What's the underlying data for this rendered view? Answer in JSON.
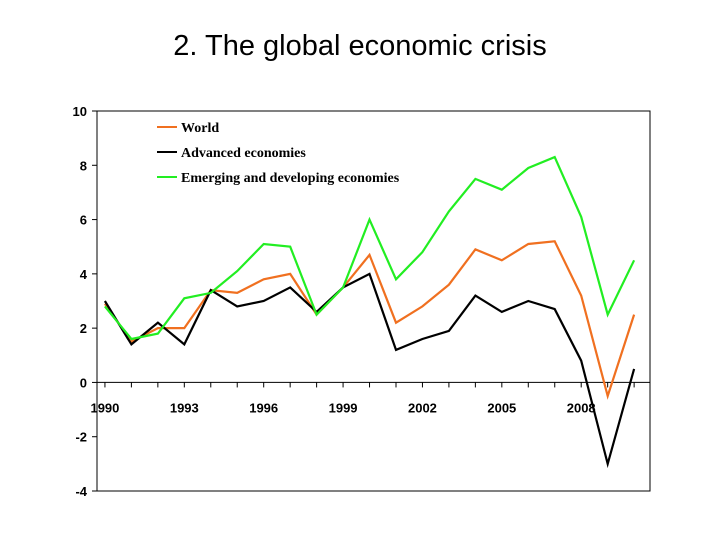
{
  "slide": {
    "title": "2. The global economic crisis"
  },
  "chart_data": {
    "type": "line",
    "title": "",
    "xlabel": "",
    "ylabel": "",
    "x": [
      1990,
      1991,
      1992,
      1993,
      1994,
      1995,
      1996,
      1997,
      1998,
      1999,
      2000,
      2001,
      2002,
      2003,
      2004,
      2005,
      2006,
      2007,
      2008,
      2009,
      2010
    ],
    "xticks": [
      "1990",
      "1993",
      "1996",
      "1999",
      "2002",
      "2005",
      "2008"
    ],
    "xtick_values": [
      1990,
      1993,
      1996,
      1999,
      2002,
      2005,
      2008
    ],
    "yticks": [
      "10",
      "8",
      "6",
      "4",
      "2",
      "0",
      "-2",
      "-4"
    ],
    "ytick_values": [
      10,
      8,
      6,
      4,
      2,
      0,
      -2,
      -4
    ],
    "ylim": [
      -4,
      10
    ],
    "xlim": [
      1989.7,
      2010.6
    ],
    "grid": false,
    "legend_position": "top-center",
    "series": [
      {
        "name": "World",
        "color": "#f07020",
        "values": [
          2.9,
          1.5,
          2.0,
          2.0,
          3.4,
          3.3,
          3.8,
          4.0,
          2.5,
          3.5,
          4.7,
          2.2,
          2.8,
          3.6,
          4.9,
          4.5,
          5.1,
          5.2,
          3.2,
          -0.5,
          2.5
        ]
      },
      {
        "name": "Advanced economies",
        "color": "#000000",
        "values": [
          3.0,
          1.4,
          2.2,
          1.4,
          3.4,
          2.8,
          3.0,
          3.5,
          2.6,
          3.5,
          4.0,
          1.2,
          1.6,
          1.9,
          3.2,
          2.6,
          3.0,
          2.7,
          0.8,
          -3.0,
          0.5
        ]
      },
      {
        "name": "Emerging and developing economies",
        "color": "#22ee22",
        "values": [
          2.8,
          1.6,
          1.8,
          3.1,
          3.3,
          4.1,
          5.1,
          5.0,
          2.5,
          3.5,
          6.0,
          3.8,
          4.8,
          6.3,
          7.5,
          7.1,
          7.9,
          8.3,
          6.1,
          2.5,
          4.5
        ]
      }
    ]
  }
}
